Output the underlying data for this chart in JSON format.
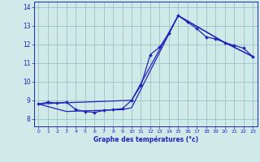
{
  "xlabel": "Graphe des températures (°c)",
  "xlim": [
    -0.5,
    23.5
  ],
  "ylim": [
    7.6,
    14.3
  ],
  "xticks": [
    0,
    1,
    2,
    3,
    4,
    5,
    6,
    7,
    8,
    9,
    10,
    11,
    12,
    13,
    14,
    15,
    16,
    17,
    18,
    19,
    20,
    21,
    22,
    23
  ],
  "yticks": [
    8,
    9,
    10,
    11,
    12,
    13,
    14
  ],
  "background_color": "#d0eaea",
  "line_color": "#2222bb",
  "grid_color": "#a0c8c8",
  "line1_x": [
    0,
    1,
    2,
    3,
    4,
    5,
    6,
    7,
    8,
    9,
    10,
    11,
    12,
    13,
    14,
    15,
    16,
    17,
    18,
    19,
    20,
    21,
    22,
    23
  ],
  "line1_y": [
    8.8,
    8.9,
    8.85,
    8.9,
    8.5,
    8.4,
    8.35,
    8.45,
    8.5,
    8.55,
    9.0,
    9.8,
    11.45,
    11.85,
    12.6,
    13.55,
    13.2,
    12.85,
    12.4,
    12.3,
    12.1,
    11.95,
    11.8,
    11.35
  ],
  "line2_x": [
    0,
    2,
    10,
    15,
    20,
    23
  ],
  "line2_y": [
    8.8,
    8.85,
    9.0,
    13.55,
    12.1,
    11.35
  ],
  "line3_x": [
    0,
    3,
    9,
    10,
    15,
    20,
    23
  ],
  "line3_y": [
    8.8,
    8.4,
    8.5,
    8.6,
    13.55,
    12.1,
    11.35
  ]
}
